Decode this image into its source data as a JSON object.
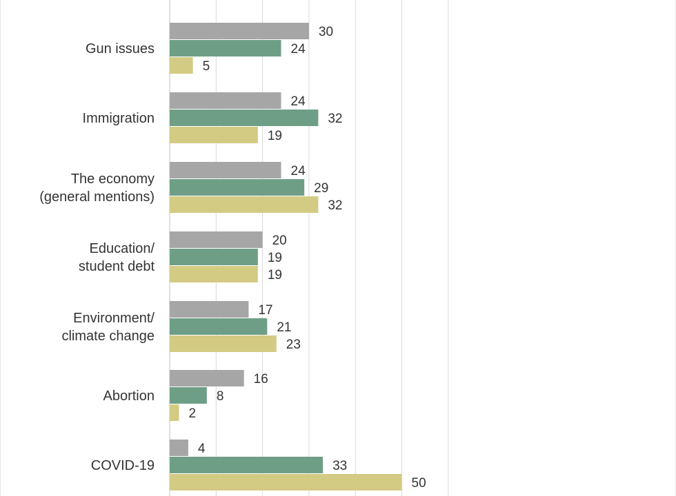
{
  "chart_data": {
    "type": "bar",
    "orientation": "horizontal",
    "title": "",
    "xlabel": "",
    "ylabel": "",
    "xlim": [
      0,
      60
    ],
    "grid": true,
    "legend": "none",
    "categories_top_to_bottom": [
      "",
      "Gun issues",
      "Immigration",
      "The economy\n(general mentions)",
      "Education/\nstudent debt",
      "Environment/\nclimate change",
      "Abortion",
      "COVID-19"
    ],
    "series": [
      {
        "color": "#a6a6a6",
        "values": [
          0,
          30,
          24,
          24,
          20,
          17,
          16,
          4
        ]
      },
      {
        "color": "#6e9f86",
        "values": [
          null,
          24,
          32,
          29,
          19,
          21,
          8,
          33
        ]
      },
      {
        "color": "#d3cb84",
        "values": [
          null,
          5,
          19,
          32,
          19,
          23,
          2,
          50
        ]
      }
    ]
  }
}
